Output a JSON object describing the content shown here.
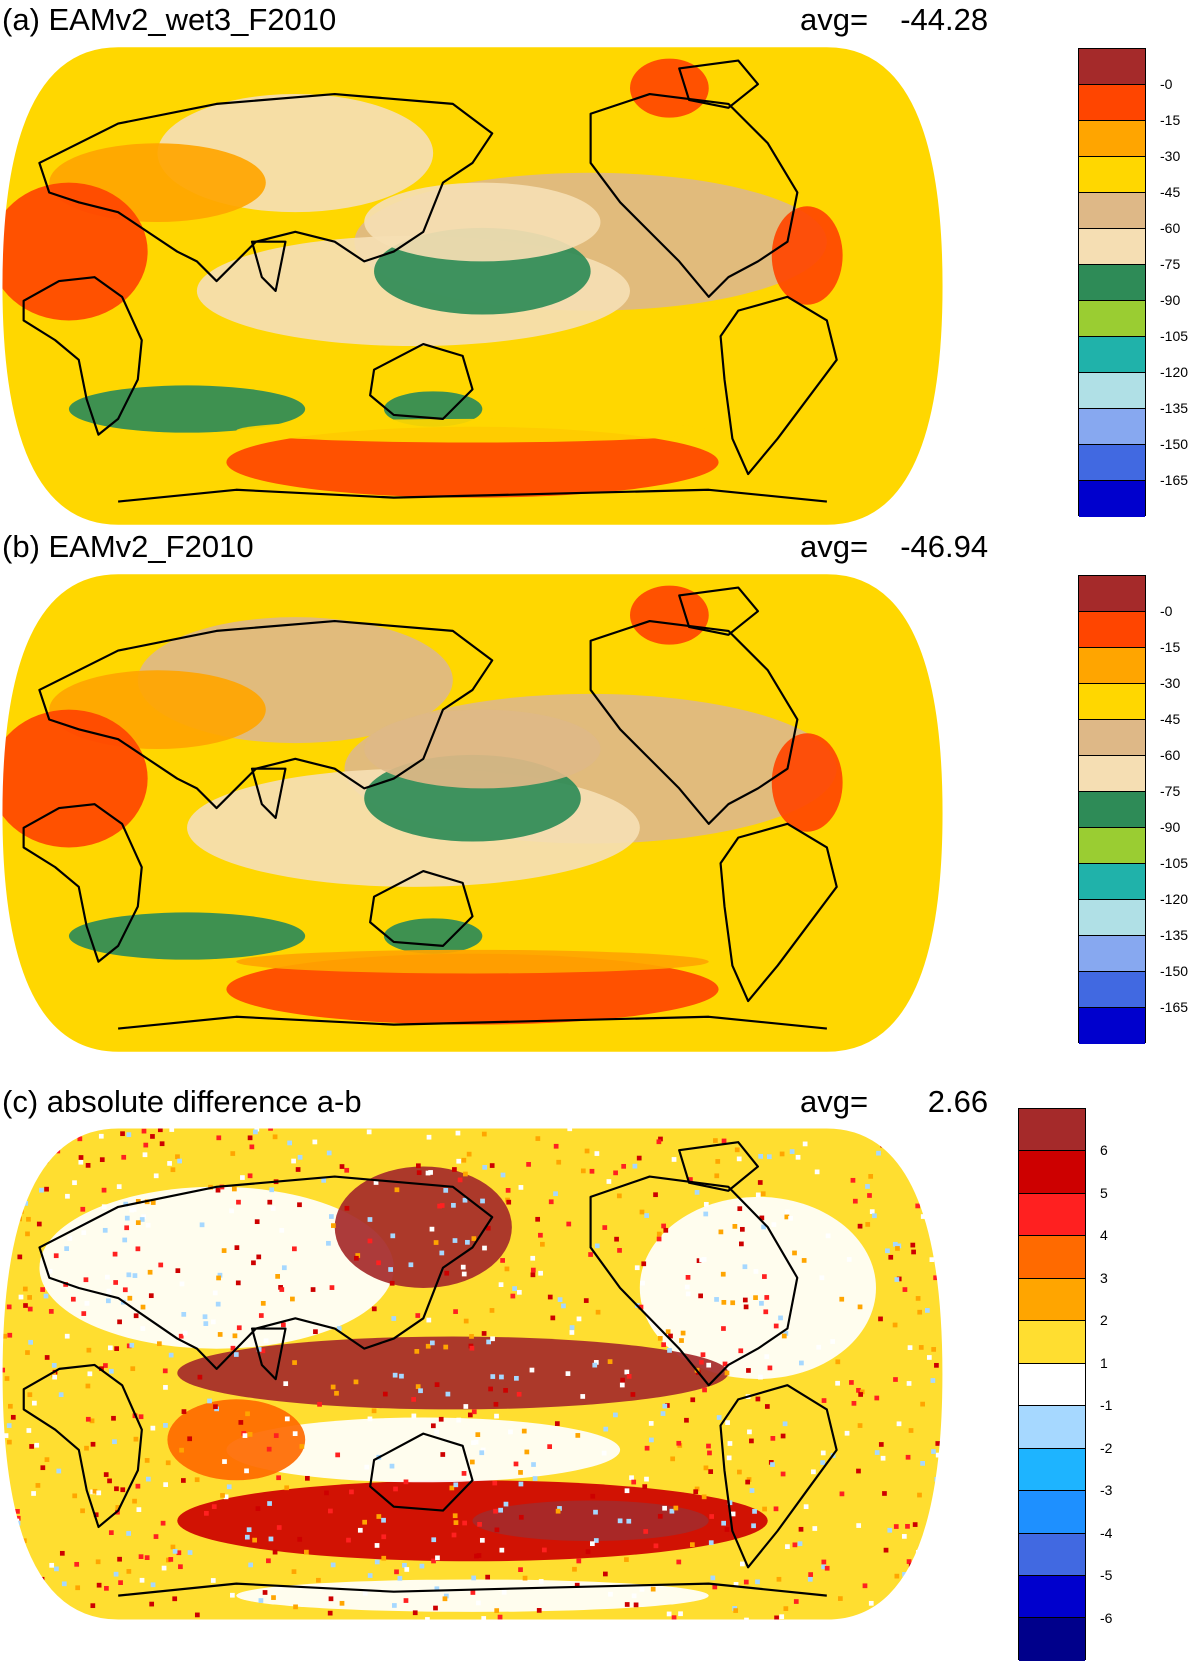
{
  "panels": [
    {
      "title": "(a) EAMv2_wet3_F2010",
      "avg_label": "avg=",
      "avg_value": "-44.28",
      "legend": {
        "colors": [
          "#a52a2a",
          "#ff4500",
          "#ffa500",
          "#ffd700",
          "#deb887",
          "#f5deb3",
          "#2e8b57",
          "#9acd32",
          "#20b2aa",
          "#b0e0e6",
          "#87a8f0",
          "#4169e1",
          "#0000cd"
        ],
        "labels": [
          "-0",
          "-15",
          "-30",
          "-45",
          "-60",
          "-75",
          "-90",
          "-105",
          "-120",
          "-135",
          "-150",
          "-165"
        ]
      },
      "fields": {
        "base_color": "#ffd700",
        "blobs": [
          {
            "color": "#f5deb3",
            "cx": 150,
            "cy": 55,
            "rx": 70,
            "ry": 30
          },
          {
            "color": "#deb887",
            "cx": 300,
            "cy": 100,
            "rx": 120,
            "ry": 35
          },
          {
            "color": "#f5deb3",
            "cx": 210,
            "cy": 125,
            "rx": 110,
            "ry": 28
          },
          {
            "color": "#2e8b57",
            "cx": 245,
            "cy": 115,
            "rx": 55,
            "ry": 22
          },
          {
            "color": "#ffa500",
            "cx": 80,
            "cy": 70,
            "rx": 55,
            "ry": 20
          },
          {
            "color": "#ff4500",
            "cx": 35,
            "cy": 105,
            "rx": 40,
            "ry": 35
          },
          {
            "color": "#2e8b57",
            "cx": 95,
            "cy": 185,
            "rx": 60,
            "ry": 12
          },
          {
            "color": "#2e8b57",
            "cx": 220,
            "cy": 185,
            "rx": 25,
            "ry": 9
          },
          {
            "color": "#ff4500",
            "cx": 240,
            "cy": 212,
            "rx": 125,
            "ry": 18
          },
          {
            "color": "#ffd700",
            "cx": 240,
            "cy": 196,
            "rx": 120,
            "ry": 6
          },
          {
            "color": "#ff4500",
            "cx": 340,
            "cy": 22,
            "rx": 20,
            "ry": 15
          },
          {
            "color": "#ff4500",
            "cx": 410,
            "cy": 107,
            "rx": 18,
            "ry": 25
          },
          {
            "color": "#f5deb3",
            "cx": 245,
            "cy": 90,
            "rx": 60,
            "ry": 20
          }
        ],
        "land_color": "#ffa500"
      }
    },
    {
      "title": "(b) EAMv2_F2010",
      "avg_label": "avg=",
      "avg_value": "-46.94",
      "legend": {
        "colors": [
          "#a52a2a",
          "#ff4500",
          "#ffa500",
          "#ffd700",
          "#deb887",
          "#f5deb3",
          "#2e8b57",
          "#9acd32",
          "#20b2aa",
          "#b0e0e6",
          "#87a8f0",
          "#4169e1",
          "#0000cd"
        ],
        "labels": [
          "-0",
          "-15",
          "-30",
          "-45",
          "-60",
          "-75",
          "-90",
          "-105",
          "-120",
          "-135",
          "-150",
          "-165"
        ]
      },
      "fields": {
        "base_color": "#ffd700",
        "blobs": [
          {
            "color": "#deb887",
            "cx": 150,
            "cy": 55,
            "rx": 80,
            "ry": 32
          },
          {
            "color": "#deb887",
            "cx": 300,
            "cy": 100,
            "rx": 125,
            "ry": 38
          },
          {
            "color": "#f5deb3",
            "cx": 210,
            "cy": 130,
            "rx": 115,
            "ry": 30
          },
          {
            "color": "#2e8b57",
            "cx": 240,
            "cy": 115,
            "rx": 55,
            "ry": 22
          },
          {
            "color": "#ffa500",
            "cx": 80,
            "cy": 70,
            "rx": 55,
            "ry": 20
          },
          {
            "color": "#ff4500",
            "cx": 35,
            "cy": 105,
            "rx": 40,
            "ry": 35
          },
          {
            "color": "#2e8b57",
            "cx": 95,
            "cy": 185,
            "rx": 60,
            "ry": 12
          },
          {
            "color": "#2e8b57",
            "cx": 220,
            "cy": 185,
            "rx": 25,
            "ry": 9
          },
          {
            "color": "#ff4500",
            "cx": 240,
            "cy": 212,
            "rx": 125,
            "ry": 18
          },
          {
            "color": "#ffa500",
            "cx": 240,
            "cy": 198,
            "rx": 120,
            "ry": 6
          },
          {
            "color": "#ff4500",
            "cx": 340,
            "cy": 22,
            "rx": 20,
            "ry": 15
          },
          {
            "color": "#ff4500",
            "cx": 410,
            "cy": 107,
            "rx": 18,
            "ry": 25
          },
          {
            "color": "#deb887",
            "cx": 245,
            "cy": 90,
            "rx": 60,
            "ry": 20
          }
        ],
        "land_color": "#ffa500"
      }
    },
    {
      "title": "(c) absolute difference a-b",
      "avg_label": "avg=",
      "avg_value": "2.66",
      "legend": {
        "colors": [
          "#a52a2a",
          "#cd0000",
          "#ff2020",
          "#ff6a00",
          "#ffa500",
          "#ffde30",
          "#ffffff",
          "#a6d8ff",
          "#1eb4ff",
          "#1e90ff",
          "#4169e1",
          "#0000cd",
          "#00008b"
        ],
        "labels": [
          "6",
          "5",
          "4",
          "3",
          "2",
          "1",
          "-1",
          "-2",
          "-3",
          "-4",
          "-5",
          "-6"
        ]
      },
      "fields": {
        "base_color": "#ffde30",
        "blobs": [
          {
            "color": "#ffffff",
            "cx": 110,
            "cy": 70,
            "rx": 90,
            "ry": 40
          },
          {
            "color": "#ffffff",
            "cx": 385,
            "cy": 80,
            "rx": 60,
            "ry": 45
          },
          {
            "color": "#a52a2a",
            "cx": 215,
            "cy": 50,
            "rx": 45,
            "ry": 30
          },
          {
            "color": "#a52a2a",
            "cx": 230,
            "cy": 122,
            "rx": 140,
            "ry": 18
          },
          {
            "color": "#cd0000",
            "cx": 240,
            "cy": 195,
            "rx": 150,
            "ry": 20
          },
          {
            "color": "#a52a2a",
            "cx": 300,
            "cy": 195,
            "rx": 60,
            "ry": 10
          },
          {
            "color": "#ffffff",
            "cx": 215,
            "cy": 160,
            "rx": 100,
            "ry": 16
          },
          {
            "color": "#ff6a00",
            "cx": 120,
            "cy": 155,
            "rx": 35,
            "ry": 20
          },
          {
            "color": "#ffffff",
            "cx": 240,
            "cy": 232,
            "rx": 120,
            "ry": 8
          }
        ],
        "land_color": "#ffde30"
      }
    }
  ]
}
